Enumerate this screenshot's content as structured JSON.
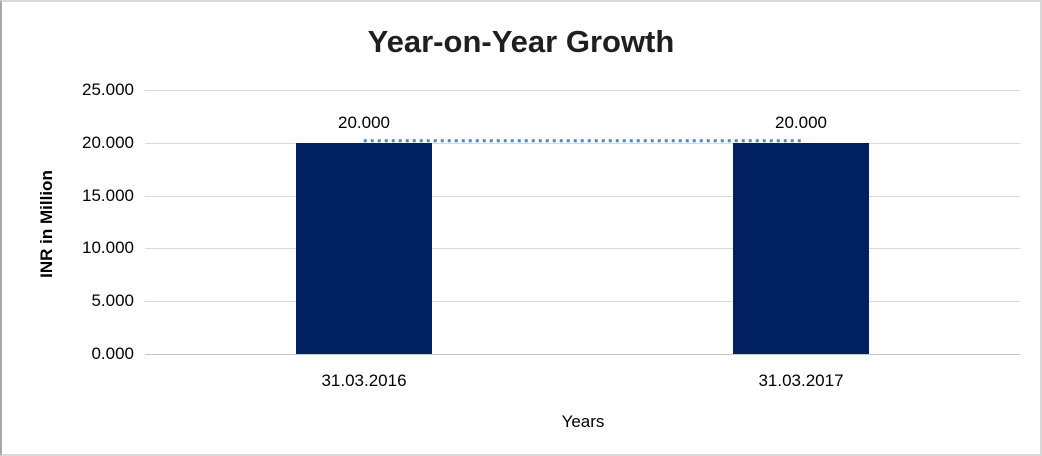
{
  "chart_data": {
    "type": "bar",
    "title": "Year-on-Year Growth",
    "xlabel": "Years",
    "ylabel": "INR in Million",
    "categories": [
      "31.03.2016",
      "31.03.2017"
    ],
    "series": [
      {
        "name": "bars",
        "type": "bar",
        "values": [
          20000,
          20000
        ],
        "color": "#002060"
      },
      {
        "name": "trend",
        "type": "line",
        "values": [
          20000,
          20000
        ],
        "color": "#4f86c6",
        "line_style": "dotted"
      }
    ],
    "data_labels": [
      "20.000",
      "20.000"
    ],
    "ylim": [
      0,
      25000
    ],
    "y_tick_step": 5000,
    "y_tick_labels": [
      "0.000",
      "5.000",
      "10.000",
      "15.000",
      "20.000",
      "25.000"
    ],
    "grid": true,
    "legend": false,
    "colors": {
      "bar": "#002060",
      "trend_line": "#4f86c6",
      "grid": "#d9d9d9",
      "axis": "#c6c6c6",
      "text": "#000000",
      "title": "#1f1f1f",
      "frame_border": "#d9d9d9",
      "background": "#ffffff"
    }
  }
}
